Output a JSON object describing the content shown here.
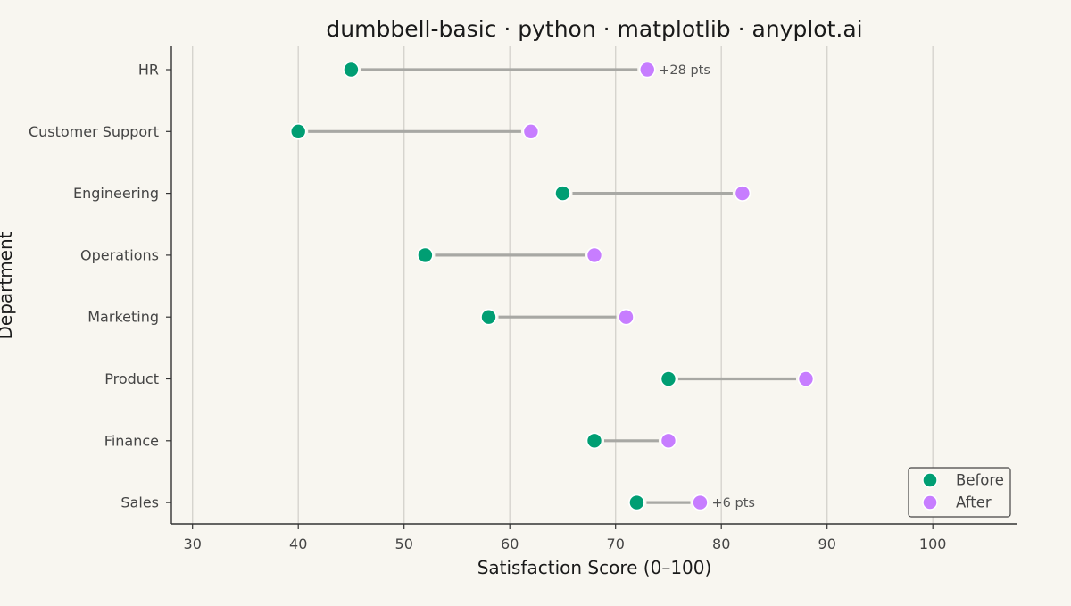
{
  "chart_data": {
    "type": "dumbbell",
    "title": "dumbbell-basic · python · matplotlib · anyplot.ai",
    "xlabel": "Satisfaction Score (0–100)",
    "ylabel": "Department",
    "xlim": [
      28,
      108
    ],
    "xticks": [
      30,
      40,
      50,
      60,
      70,
      80,
      90,
      100
    ],
    "grid": "vertical",
    "legend_position": "bottom-right",
    "categories": [
      "HR",
      "Customer Support",
      "Engineering",
      "Operations",
      "Marketing",
      "Product",
      "Finance",
      "Sales"
    ],
    "series": [
      {
        "name": "Before",
        "color": "#009E73",
        "values": [
          45,
          40,
          65,
          52,
          58,
          75,
          68,
          72
        ]
      },
      {
        "name": "After",
        "color": "#C77DFF",
        "values": [
          73,
          62,
          82,
          68,
          71,
          88,
          75,
          78
        ]
      }
    ],
    "annotations": [
      {
        "category": "HR",
        "text": "+28 pts"
      },
      {
        "category": "Sales",
        "text": "+6 pts"
      }
    ],
    "connector_color": "#A8A8A4",
    "grid_color": "#D6D4CE",
    "axis_color": "#333333"
  }
}
